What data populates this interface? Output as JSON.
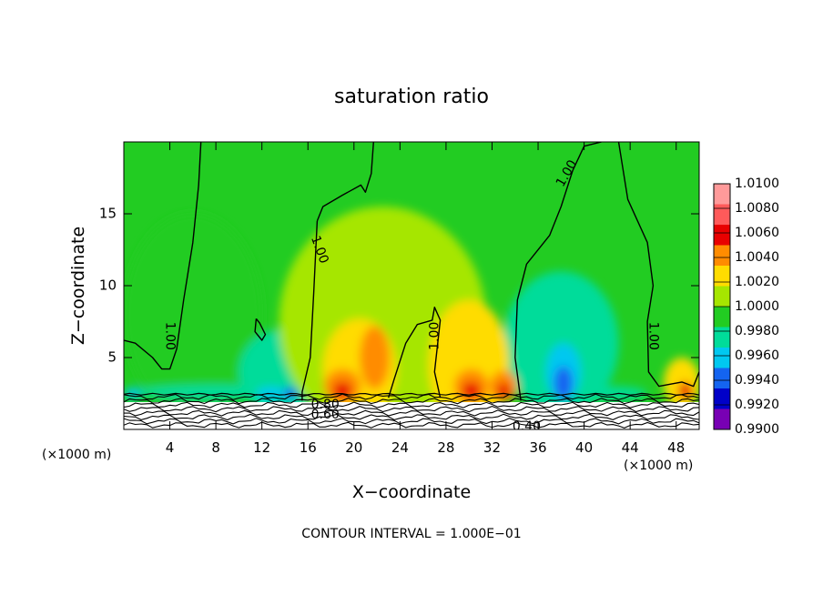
{
  "chart_data": {
    "type": "heatmap",
    "title": "saturation ratio",
    "xlabel": "X−coordinate",
    "ylabel": "Z−coordinate",
    "x_unit_left": "(×1000 m)",
    "x_unit_right": "(×1000 m)",
    "xlim": [
      0,
      50
    ],
    "ylim": [
      0,
      20
    ],
    "xticks": [
      4,
      8,
      12,
      16,
      20,
      24,
      28,
      32,
      36,
      40,
      44,
      48
    ],
    "yticks": [
      5,
      10,
      15
    ],
    "footer": "CONTOUR INTERVAL = 1.000E−01",
    "colorbar": {
      "levels": [
        "1.0100",
        "1.0080",
        "1.0060",
        "1.0040",
        "1.0020",
        "1.0000",
        "0.9980",
        "0.9960",
        "0.9940",
        "0.9920",
        "0.9900"
      ],
      "colors": [
        "#ff9a9a",
        "#ff5a5a",
        "#e80000",
        "#ff8c00",
        "#ffdc00",
        "#a6e600",
        "#22cc22",
        "#00dc9a",
        "#00c8f0",
        "#1464f0",
        "#0000c8",
        "#7800b4"
      ]
    },
    "contour_labels": [
      {
        "text": "1.00",
        "x": 4.0,
        "z": 6.5,
        "angle": 90
      },
      {
        "text": "1.00",
        "x": 17.0,
        "z": 12.5,
        "angle": 70
      },
      {
        "text": "1.00",
        "x": 27.0,
        "z": 6.5,
        "angle": -90
      },
      {
        "text": "1.00",
        "x": 38.5,
        "z": 17.8,
        "angle": -60
      },
      {
        "text": "1.00",
        "x": 46.0,
        "z": 6.5,
        "angle": 90
      },
      {
        "text": "0.80",
        "x": 17.5,
        "z": 1.7,
        "angle": 0
      },
      {
        "text": "0.60",
        "x": 17.5,
        "z": 1.0,
        "angle": 0
      },
      {
        "text": "0.40",
        "x": 35.0,
        "z": 0.2,
        "angle": 0
      }
    ],
    "contour_one": [
      [
        [
          0,
          6.2
        ],
        [
          1,
          6.0
        ],
        [
          2.5,
          5.0
        ],
        [
          3.3,
          4.2
        ],
        [
          4.0,
          4.2
        ],
        [
          4.6,
          5.6
        ],
        [
          5.2,
          9.0
        ],
        [
          6.0,
          13.0
        ],
        [
          6.5,
          17.0
        ],
        [
          6.7,
          20.0
        ]
      ],
      [
        [
          16.8,
          14.5
        ],
        [
          17.3,
          15.5
        ],
        [
          19.0,
          16.3
        ],
        [
          20.6,
          17.0
        ],
        [
          21.0,
          16.5
        ],
        [
          21.5,
          17.8
        ],
        [
          21.7,
          20.0
        ]
      ],
      [
        [
          16.8,
          14.5
        ],
        [
          16.5,
          9.5
        ],
        [
          16.2,
          5.0
        ],
        [
          15.5,
          2.6
        ],
        [
          15.5,
          2.0
        ]
      ],
      [
        [
          23.0,
          2.2
        ],
        [
          23.5,
          3.5
        ],
        [
          24.5,
          6.0
        ],
        [
          25.5,
          7.3
        ],
        [
          26.8,
          7.6
        ],
        [
          27.0,
          8.5
        ],
        [
          27.5,
          7.6
        ],
        [
          27.0,
          4.0
        ],
        [
          27.5,
          2.2
        ]
      ],
      [
        [
          34.5,
          2.0
        ],
        [
          34.0,
          5.0
        ],
        [
          34.2,
          9.0
        ],
        [
          35.0,
          11.5
        ],
        [
          37.0,
          13.5
        ],
        [
          38.0,
          15.5
        ],
        [
          39.0,
          18.0
        ],
        [
          40.0,
          19.7
        ],
        [
          41.5,
          20.0
        ]
      ],
      [
        [
          43.0,
          20.0
        ],
        [
          43.8,
          16.0
        ],
        [
          45.5,
          13.0
        ],
        [
          46.0,
          10.0
        ],
        [
          45.5,
          7.5
        ],
        [
          45.6,
          4.0
        ],
        [
          46.5,
          3.0
        ],
        [
          48.5,
          3.3
        ],
        [
          49.5,
          3.0
        ],
        [
          50.0,
          4.0
        ]
      ],
      [
        [
          11.5,
          7.7
        ],
        [
          11.8,
          7.4
        ],
        [
          12.3,
          6.6
        ],
        [
          12.0,
          6.2
        ],
        [
          11.4,
          6.8
        ],
        [
          11.5,
          7.7
        ]
      ]
    ],
    "blobs": [
      {
        "x": 6,
        "z": 8,
        "rx": 6,
        "rz": 7,
        "value": "0.9985"
      },
      {
        "x": 14,
        "z": 4,
        "rx": 4,
        "rz": 3,
        "value": "0.9965"
      },
      {
        "x": 38,
        "z": 6,
        "rx": 5,
        "rz": 5,
        "value": "0.9975"
      },
      {
        "x": 38.2,
        "z": 4.0,
        "rx": 1.5,
        "rz": 2.0,
        "value": "0.9940"
      },
      {
        "x": 38.2,
        "z": 3.2,
        "rx": 0.8,
        "rz": 1.2,
        "value": "0.9925"
      },
      {
        "x": 26,
        "z": 3.6,
        "rx": 1.6,
        "rz": 2.2,
        "value": "0.9950"
      },
      {
        "x": 25.7,
        "z": 2.8,
        "rx": 0.8,
        "rz": 0.9,
        "value": "0.9925"
      },
      {
        "x": 22.5,
        "z": 7.5,
        "rx": 9,
        "rz": 8,
        "value": "1.0015"
      },
      {
        "x": 20.5,
        "z": 4.2,
        "rx": 3.2,
        "rz": 3.5,
        "value": "1.0025"
      },
      {
        "x": 21.8,
        "z": 5.0,
        "rx": 1.3,
        "rz": 2.2,
        "value": "1.0045"
      },
      {
        "x": 19.0,
        "z": 3.0,
        "rx": 1.6,
        "rz": 1.2,
        "value": "1.0040"
      },
      {
        "x": 19.0,
        "z": 2.7,
        "rx": 0.8,
        "rz": 0.6,
        "value": "1.0065"
      },
      {
        "x": 30,
        "z": 4.5,
        "rx": 3.5,
        "rz": 4.5,
        "value": "1.0020"
      },
      {
        "x": 30.2,
        "z": 3.0,
        "rx": 1.5,
        "rz": 1.2,
        "value": "1.0040"
      },
      {
        "x": 30.2,
        "z": 2.7,
        "rx": 0.8,
        "rz": 0.6,
        "value": "1.0065"
      },
      {
        "x": 33.0,
        "z": 3.0,
        "rx": 1.2,
        "rz": 1.1,
        "value": "1.0040"
      },
      {
        "x": 33.0,
        "z": 2.7,
        "rx": 0.6,
        "rz": 0.5,
        "value": "1.0065"
      },
      {
        "x": 48.5,
        "z": 3.2,
        "rx": 1.6,
        "rz": 1.8,
        "value": "1.0030"
      },
      {
        "x": 48.8,
        "z": 2.7,
        "rx": 0.6,
        "rz": 0.6,
        "value": "1.0065"
      },
      {
        "x": 8,
        "z": 2.6,
        "rx": 7,
        "rz": 0.5,
        "value": "0.9965"
      },
      {
        "x": 0.8,
        "z": 2.5,
        "rx": 0.8,
        "rz": 0.4,
        "value": "0.9940"
      },
      {
        "x": 12.8,
        "z": 2.5,
        "rx": 1.3,
        "rz": 0.45,
        "value": "0.9940"
      },
      {
        "x": 14.5,
        "z": 2.5,
        "rx": 0.6,
        "rz": 0.4,
        "value": "0.9920"
      },
      {
        "x": 42.5,
        "z": 2.5,
        "rx": 3,
        "rz": 0.5,
        "value": "0.9965"
      }
    ]
  }
}
